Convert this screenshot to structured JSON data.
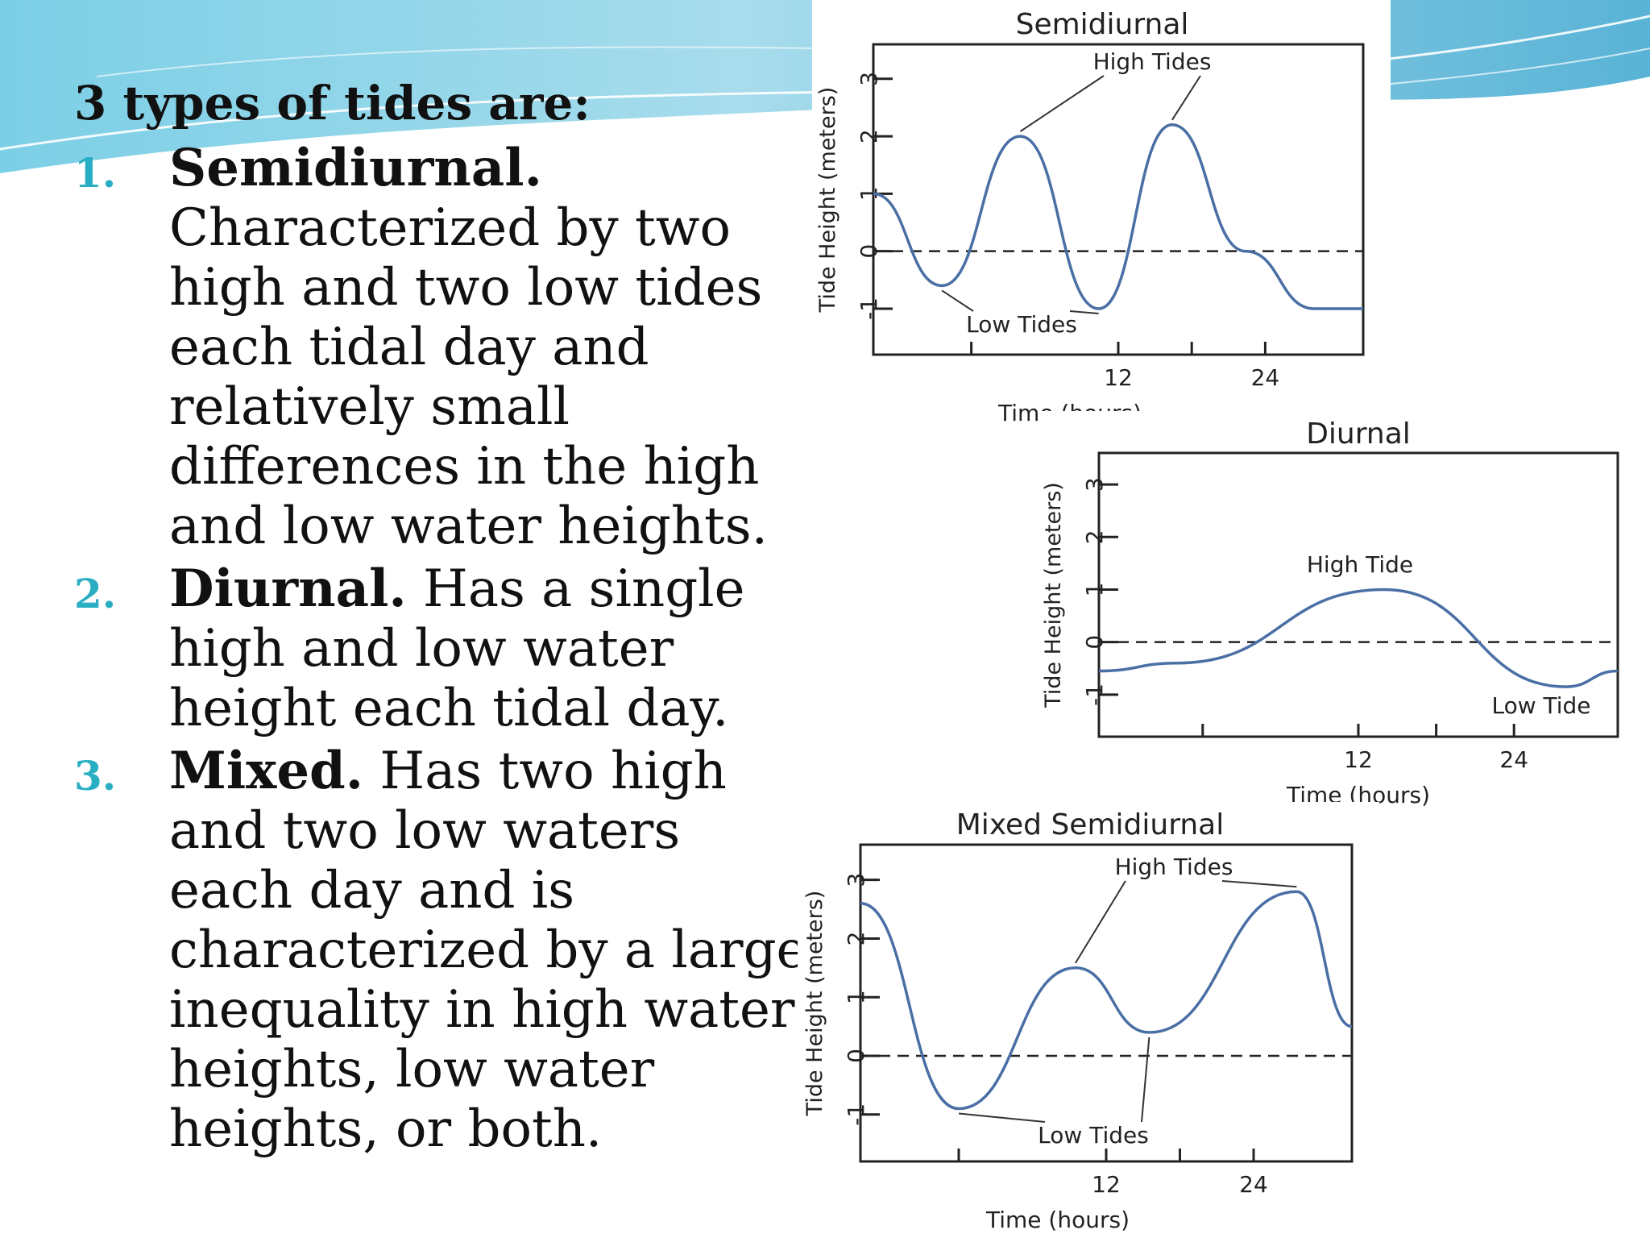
{
  "slide": {
    "title": "3 types of tides are:",
    "items": [
      {
        "number": "1.",
        "term": "Semidiurnal.",
        "description": "Characterized by two high and two low tides each tidal day and relatively small differences in the high and low water heights."
      },
      {
        "number": "2.",
        "term": "Diurnal.",
        "description": "Has a single high and low water height each tidal day."
      },
      {
        "number": "3.",
        "term": "Mixed.",
        "description": "Has two high and two low waters each day and is characterized by a large inequality in high water heights, low water heights, or both."
      }
    ]
  },
  "theme": {
    "accent": "#2aaec4",
    "band_dark": "#5cb8d8",
    "band_light": "#bfe6f2",
    "curve": "#4a6fa5"
  },
  "chart_data": [
    {
      "type": "line",
      "title": "Semidiurnal",
      "xlabel": "Time (hours)",
      "ylabel": "Tide Height (meters)",
      "xlim": [
        -8,
        32
      ],
      "ylim": [
        -1.8,
        3.6
      ],
      "xticks": [
        12,
        24
      ],
      "xticks_unlabeled": [
        0,
        18
      ],
      "yticks": [
        -1,
        0,
        1,
        2,
        3
      ],
      "mean_line": 0,
      "series": [
        {
          "x": [
            -8,
            -2.4,
            4,
            10.4,
            16.4,
            22.4,
            28,
            32
          ],
          "y": [
            1.0,
            -0.6,
            2.0,
            -1.0,
            2.2,
            0.0,
            -1.0,
            -1.0
          ]
        }
      ],
      "annotations": [
        {
          "text": "High Tides",
          "points": [
            [
              4,
              2.0
            ],
            [
              16.4,
              2.2
            ]
          ]
        },
        {
          "text": "Low Tides",
          "points": [
            [
              -2.4,
              -0.6
            ],
            [
              10.4,
              -1.0
            ]
          ]
        }
      ]
    },
    {
      "type": "line",
      "title": "Diurnal",
      "xlabel": "Time (hours)",
      "ylabel": "Tide Height (meters)",
      "xlim": [
        -8,
        32
      ],
      "ylim": [
        -1.8,
        3.6
      ],
      "xticks": [
        12,
        24
      ],
      "xticks_unlabeled": [
        0,
        18
      ],
      "yticks": [
        -1,
        0,
        1,
        2,
        3
      ],
      "mean_line": 0,
      "series": [
        {
          "x": [
            -8,
            -2,
            14,
            28,
            32
          ],
          "y": [
            -0.55,
            -0.4,
            1.0,
            -0.85,
            -0.55
          ]
        }
      ],
      "annotations": [
        {
          "text": "High Tide",
          "points": []
        },
        {
          "text": "Low Tide",
          "points": []
        }
      ]
    },
    {
      "type": "line",
      "title": "Mixed Semidiurnal",
      "xlabel": "Time (hours)",
      "ylabel": "Tide Height (meters)",
      "xlim": [
        -8,
        32
      ],
      "ylim": [
        -1.8,
        3.6
      ],
      "xticks": [
        12,
        24
      ],
      "xticks_unlabeled": [
        0,
        18
      ],
      "yticks": [
        -1,
        0,
        1,
        2,
        3
      ],
      "mean_line": 0,
      "series": [
        {
          "x": [
            -8,
            0,
            9.5,
            15.5,
            27.5,
            32
          ],
          "y": [
            2.6,
            -0.9,
            1.5,
            0.4,
            2.8,
            0.5
          ]
        }
      ],
      "annotations": [
        {
          "text": "High Tides",
          "points": [
            [
              9.5,
              1.5
            ],
            [
              27.5,
              2.8
            ]
          ]
        },
        {
          "text": "Low Tides",
          "points": [
            [
              0,
              -0.9
            ],
            [
              15.5,
              0.4
            ]
          ]
        }
      ]
    }
  ]
}
